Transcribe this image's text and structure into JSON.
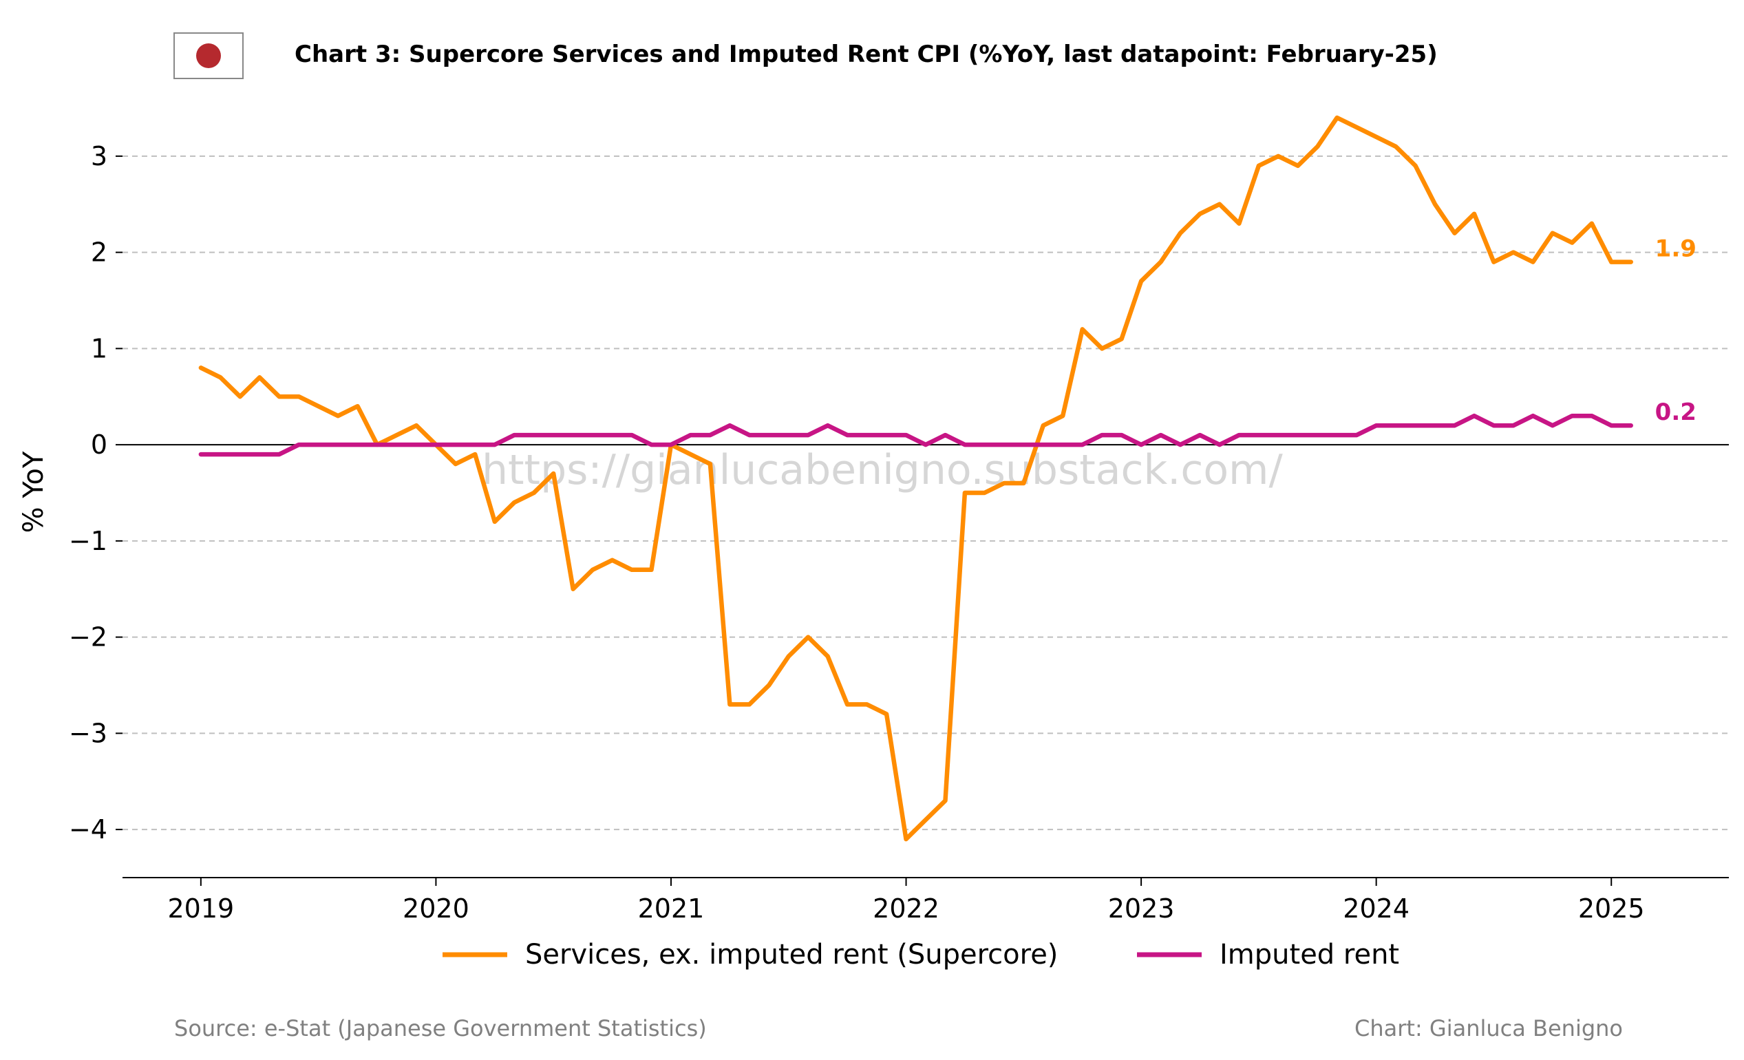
{
  "flag": {
    "country": "Japan",
    "icon": "japan-flag-icon",
    "circle_color": "#b5292e"
  },
  "watermark": "https://gianlucabenigno.substack.com/",
  "footer": {
    "source": "Source: e-Stat (Japanese Government Statistics)",
    "credit": "Chart: Gianluca Benigno"
  },
  "chart_data": {
    "type": "line",
    "title": "Chart 3: Supercore Services and Imputed Rent CPI (%YoY, last datapoint: February-25)",
    "xlabel": "",
    "ylabel": "% YoY",
    "ylim": [
      -4.5,
      3.55
    ],
    "xlim": [
      "2018-09",
      "2025-07"
    ],
    "y_ticks": [
      3,
      2,
      1,
      0,
      -1,
      -2,
      -3,
      -4
    ],
    "y_tick_labels": [
      "3",
      "2",
      "1",
      "0",
      "−1",
      "−2",
      "−3",
      "−4"
    ],
    "x_ticks": [
      "2019-01",
      "2020-01",
      "2021-01",
      "2022-01",
      "2023-01",
      "2024-01",
      "2025-01"
    ],
    "x_tick_labels": [
      "2019",
      "2020",
      "2021",
      "2022",
      "2023",
      "2024",
      "2025"
    ],
    "grid": "horizontal dashed",
    "zero_line": true,
    "legend_placement": "bottom",
    "x": [
      "2019-01",
      "2019-02",
      "2019-03",
      "2019-04",
      "2019-05",
      "2019-06",
      "2019-07",
      "2019-08",
      "2019-09",
      "2019-10",
      "2019-11",
      "2019-12",
      "2020-01",
      "2020-02",
      "2020-03",
      "2020-04",
      "2020-05",
      "2020-06",
      "2020-07",
      "2020-08",
      "2020-09",
      "2020-10",
      "2020-11",
      "2020-12",
      "2021-01",
      "2021-02",
      "2021-03",
      "2021-04",
      "2021-05",
      "2021-06",
      "2021-07",
      "2021-08",
      "2021-09",
      "2021-10",
      "2021-11",
      "2021-12",
      "2022-01",
      "2022-02",
      "2022-03",
      "2022-04",
      "2022-05",
      "2022-06",
      "2022-07",
      "2022-08",
      "2022-09",
      "2022-10",
      "2022-11",
      "2022-12",
      "2023-01",
      "2023-02",
      "2023-03",
      "2023-04",
      "2023-05",
      "2023-06",
      "2023-07",
      "2023-08",
      "2023-09",
      "2023-10",
      "2023-11",
      "2023-12",
      "2024-01",
      "2024-02",
      "2024-03",
      "2024-04",
      "2024-05",
      "2024-06",
      "2024-07",
      "2024-08",
      "2024-09",
      "2024-10",
      "2024-11",
      "2024-12",
      "2025-01",
      "2025-02"
    ],
    "series": [
      {
        "name": "Services, ex. imputed rent (Supercore)",
        "color": "#ff8c00",
        "end_label": "1.9",
        "values": [
          0.8,
          0.7,
          0.5,
          0.7,
          0.5,
          0.5,
          0.4,
          0.3,
          0.4,
          0.0,
          0.1,
          0.2,
          0.0,
          -0.2,
          -0.1,
          -0.8,
          -0.6,
          -0.5,
          -0.3,
          -1.5,
          -1.3,
          -1.2,
          -1.3,
          -1.3,
          0.0,
          -0.1,
          -0.2,
          -2.7,
          -2.7,
          -2.5,
          -2.2,
          -2.0,
          -2.2,
          -2.7,
          -2.7,
          -2.8,
          -4.1,
          -3.9,
          -3.7,
          -0.5,
          -0.5,
          -0.4,
          -0.4,
          0.2,
          0.3,
          1.2,
          1.0,
          1.1,
          1.7,
          1.9,
          2.2,
          2.4,
          2.5,
          2.3,
          2.9,
          3.0,
          2.9,
          3.1,
          3.4,
          3.3,
          3.2,
          3.1,
          2.9,
          2.5,
          2.2,
          2.4,
          1.9,
          2.0,
          1.9,
          2.2,
          2.1,
          2.3,
          1.9,
          1.9
        ]
      },
      {
        "name": "Imputed rent",
        "color": "#c71585",
        "end_label": "0.2",
        "values": [
          -0.1,
          -0.1,
          -0.1,
          -0.1,
          -0.1,
          0.0,
          0.0,
          0.0,
          0.0,
          0.0,
          0.0,
          0.0,
          0.0,
          0.0,
          0.0,
          0.0,
          0.1,
          0.1,
          0.1,
          0.1,
          0.1,
          0.1,
          0.1,
          0.0,
          0.0,
          0.1,
          0.1,
          0.2,
          0.1,
          0.1,
          0.1,
          0.1,
          0.2,
          0.1,
          0.1,
          0.1,
          0.1,
          0.0,
          0.1,
          0.0,
          0.0,
          0.0,
          0.0,
          0.0,
          0.0,
          0.0,
          0.1,
          0.1,
          0.0,
          0.1,
          0.0,
          0.1,
          0.0,
          0.1,
          0.1,
          0.1,
          0.1,
          0.1,
          0.1,
          0.1,
          0.2,
          0.2,
          0.2,
          0.2,
          0.2,
          0.3,
          0.2,
          0.2,
          0.3,
          0.2,
          0.3,
          0.3,
          0.2,
          0.2
        ]
      }
    ]
  }
}
